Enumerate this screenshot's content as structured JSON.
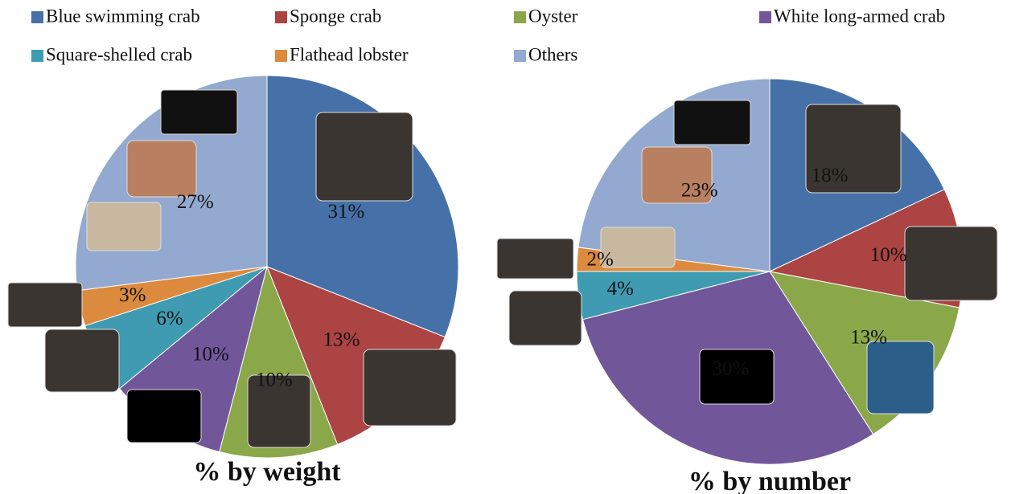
{
  "chart_data": {
    "type": "pie",
    "categories": [
      "Blue swimming crab",
      "Sponge crab",
      "Oyster",
      "White long-armed crab",
      "Square-shelled crab",
      "Flathead lobster",
      "Others"
    ],
    "colors": [
      "#4571a8",
      "#ab4443",
      "#8aa84a",
      "#71579a",
      "#3f9bb1",
      "#db8a3e",
      "#93a9cf"
    ],
    "pies": [
      {
        "title": "% by weight",
        "values": [
          31,
          13,
          10,
          10,
          6,
          3,
          27
        ],
        "value_labels": [
          "31%",
          "13%",
          "10%",
          "10%",
          "6%",
          "3%",
          "27%"
        ]
      },
      {
        "title": "% by number",
        "values": [
          18,
          10,
          13,
          30,
          4,
          2,
          23
        ],
        "value_labels": [
          "18%",
          "10%",
          "13%",
          "30%",
          "4%",
          "2%",
          "23%"
        ]
      }
    ]
  }
}
